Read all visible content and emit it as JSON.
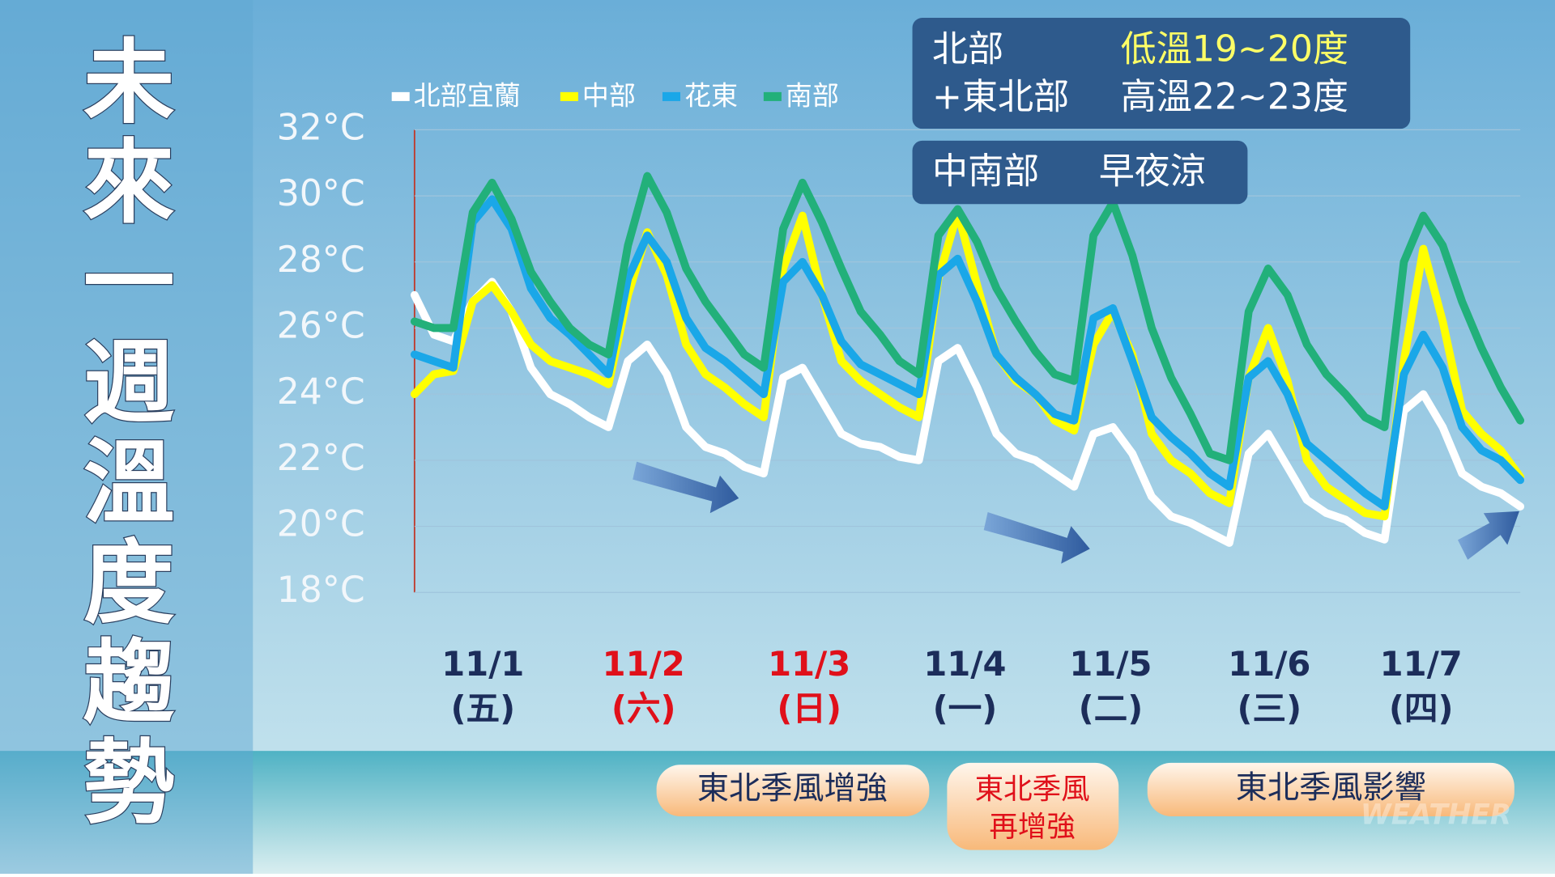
{
  "chart_data": {
    "type": "line",
    "title": "未來一週溫度趨勢",
    "ylim": [
      18,
      32
    ],
    "yticks": [
      {
        "value": 18,
        "label": "18°C"
      },
      {
        "value": 20,
        "label": "20°C"
      },
      {
        "value": 22,
        "label": "22°C"
      },
      {
        "value": 24,
        "label": "24°C"
      },
      {
        "value": 26,
        "label": "26°C"
      },
      {
        "value": 28,
        "label": "28°C"
      },
      {
        "value": 30,
        "label": "30°C"
      },
      {
        "value": 32,
        "label": "32°C"
      }
    ],
    "grid": true,
    "x_labels": [
      {
        "date": "11/1",
        "weekday": "(五)",
        "color": "#1c2d5a"
      },
      {
        "date": "11/2",
        "weekday": "(六)",
        "color": "#e0101a"
      },
      {
        "date": "11/3",
        "weekday": "(日)",
        "color": "#e0101a"
      },
      {
        "date": "11/4",
        "weekday": "(一)",
        "color": "#1c2d5a"
      },
      {
        "date": "11/5",
        "weekday": "(二)",
        "color": "#1c2d5a"
      },
      {
        "date": "11/6",
        "weekday": "(三)",
        "color": "#1c2d5a"
      },
      {
        "date": "11/7",
        "weekday": "(四)",
        "color": "#1c2d5a"
      }
    ],
    "series": [
      {
        "name": "北部宜蘭",
        "color": "#ffffff",
        "values": [
          27.0,
          25.8,
          25.6,
          26.8,
          27.4,
          26.5,
          24.8,
          24.0,
          23.7,
          23.3,
          23.0,
          25.0,
          25.5,
          24.6,
          23.0,
          22.4,
          22.2,
          21.8,
          21.6,
          24.5,
          24.8,
          23.8,
          22.8,
          22.5,
          22.4,
          22.1,
          22.0,
          25.0,
          25.4,
          24.2,
          22.8,
          22.2,
          22.0,
          21.6,
          21.2,
          22.8,
          23.0,
          22.2,
          20.9,
          20.3,
          20.1,
          19.8,
          19.5,
          22.2,
          22.8,
          21.8,
          20.8,
          20.4,
          20.2,
          19.8,
          19.6,
          23.5,
          24.0,
          23.0,
          21.6,
          21.2,
          21.0,
          20.6
        ]
      },
      {
        "name": "中部",
        "color": "#ffff00",
        "values": [
          24.0,
          24.6,
          24.7,
          26.8,
          27.3,
          26.5,
          25.5,
          25.0,
          24.8,
          24.6,
          24.3,
          27.0,
          28.9,
          27.6,
          25.5,
          24.6,
          24.2,
          23.7,
          23.3,
          27.8,
          29.4,
          27.0,
          25.0,
          24.4,
          24.0,
          23.6,
          23.3,
          27.5,
          29.5,
          27.3,
          25.2,
          24.4,
          24.0,
          23.2,
          22.9,
          25.5,
          26.5,
          25.2,
          22.8,
          22.0,
          21.6,
          21.0,
          20.7,
          24.5,
          26.0,
          24.4,
          22.0,
          21.2,
          20.8,
          20.4,
          20.3,
          25.0,
          28.4,
          26.2,
          23.5,
          22.8,
          22.3,
          21.5
        ]
      },
      {
        "name": "花東",
        "color": "#1aa7e8",
        "values": [
          25.2,
          25.0,
          24.8,
          29.2,
          29.9,
          29.0,
          27.2,
          26.3,
          25.8,
          25.2,
          24.6,
          27.5,
          28.8,
          28.0,
          26.3,
          25.4,
          25.0,
          24.5,
          24.0,
          27.4,
          28.0,
          27.0,
          25.6,
          24.9,
          24.6,
          24.3,
          24.0,
          27.6,
          28.1,
          26.8,
          25.2,
          24.5,
          24.0,
          23.4,
          23.2,
          26.3,
          26.6,
          25.0,
          23.3,
          22.7,
          22.2,
          21.6,
          21.2,
          24.5,
          25.0,
          24.0,
          22.5,
          22.0,
          21.5,
          21.0,
          20.6,
          24.6,
          25.8,
          24.8,
          23.0,
          22.3,
          22.0,
          21.4
        ]
      },
      {
        "name": "南部",
        "color": "#22b07a",
        "values": [
          26.2,
          26.0,
          26.0,
          29.5,
          30.4,
          29.3,
          27.7,
          26.8,
          26.0,
          25.5,
          25.2,
          28.5,
          30.6,
          29.5,
          27.8,
          26.8,
          26.0,
          25.2,
          24.8,
          29.0,
          30.4,
          29.2,
          27.8,
          26.5,
          25.8,
          25.0,
          24.6,
          28.8,
          29.6,
          28.6,
          27.2,
          26.2,
          25.3,
          24.6,
          24.4,
          28.8,
          29.8,
          28.2,
          26.0,
          24.5,
          23.4,
          22.2,
          22.0,
          26.5,
          27.8,
          27.0,
          25.5,
          24.6,
          24.0,
          23.3,
          23.0,
          28.0,
          29.4,
          28.5,
          26.8,
          25.4,
          24.2,
          23.2
        ]
      }
    ],
    "info_box": {
      "rows": [
        [
          "北部",
          "低溫19~20度"
        ],
        [
          "+東北部",
          "高溫22~23度"
        ]
      ],
      "note": [
        "中南部",
        "早夜涼"
      ]
    },
    "banners": [
      {
        "lines": [
          "東北季風增強"
        ]
      },
      {
        "lines": [
          "東北季風",
          "再增強"
        ]
      },
      {
        "lines": [
          "東北季風影響"
        ]
      }
    ],
    "watermark": "WEATHER"
  }
}
